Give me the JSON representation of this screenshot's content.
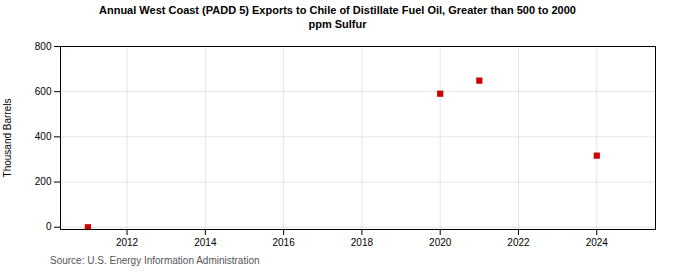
{
  "chart_data": {
    "type": "scatter",
    "title": "Annual West Coast (PADD 5) Exports to Chile of Distillate Fuel Oil, Greater than 500 to 2000\nppm Sulfur",
    "ylabel": "Thousand Barrels",
    "source": "Source: U.S. Energy Information Administration",
    "x": [
      2011,
      2020,
      2021,
      2024
    ],
    "values": [
      0,
      591,
      649,
      317
    ],
    "color": "#cc0000",
    "marker": "square",
    "xlim": [
      2010.3,
      2025.5
    ],
    "ylim": [
      -10,
      800
    ],
    "xticks": [
      2012,
      2014,
      2016,
      2018,
      2020,
      2022,
      2024
    ],
    "yticks": [
      0,
      200,
      400,
      600,
      800
    ],
    "grid": true
  }
}
